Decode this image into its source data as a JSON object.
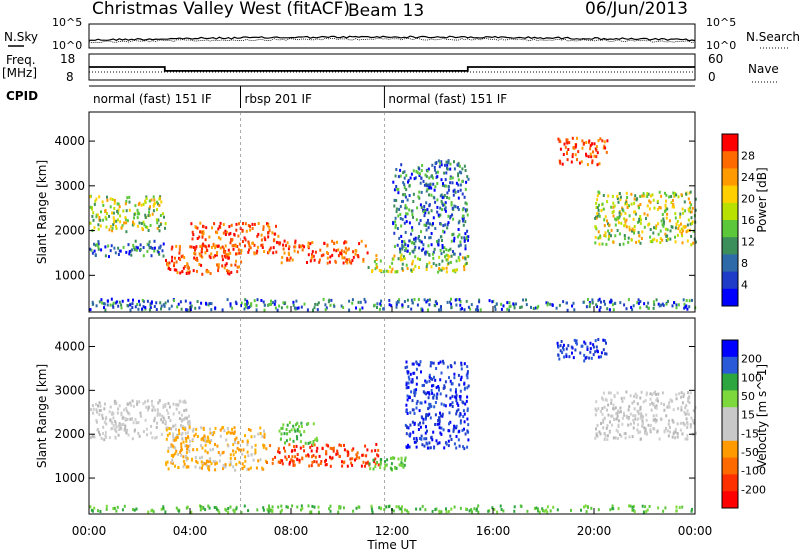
{
  "header": {
    "title": "Christmas Valley West (fitACF)",
    "beam": "Beam 13",
    "date": "06/Jun/2013"
  },
  "nsky": {
    "label": "N.Sky",
    "right_label": "N.Search",
    "ticks": [
      "10^5",
      "10^0"
    ],
    "right_ticks": [
      "10^5",
      "10^0"
    ]
  },
  "freq": {
    "label_line1": "Freq.",
    "label_line2": "[MHz]",
    "right_label": "Nave",
    "ticks": [
      "18",
      "8"
    ],
    "right_ticks": [
      "60",
      "0"
    ],
    "values_mhz": [
      {
        "start_hour": 0,
        "end_hour": 3,
        "value": 13.0
      },
      {
        "start_hour": 3,
        "end_hour": 15,
        "value": 11.5
      },
      {
        "start_hour": 15,
        "end_hour": 24,
        "value": 13.0
      }
    ]
  },
  "cpid": {
    "label": "CPID",
    "segments": [
      {
        "start_hour": 0,
        "end_hour": 6,
        "label": "normal (fast) 151 IF"
      },
      {
        "start_hour": 6,
        "end_hour": 11.7,
        "label": "rbsp 201 IF"
      },
      {
        "start_hour": 11.7,
        "end_hour": 24,
        "label": "normal (fast) 151 IF"
      }
    ]
  },
  "chart_data": [
    {
      "type": "heatmap",
      "name": "power-panel",
      "xlabel": "",
      "ylabel": "Slant Range [km]",
      "xlim": [
        0,
        24
      ],
      "ylim": [
        180,
        4650
      ],
      "yticks": [
        "1000",
        "2000",
        "3000",
        "4000"
      ],
      "colorbar": {
        "label": "Power [dB]",
        "ticks": [
          "28",
          "24",
          "20",
          "16",
          "12",
          "8",
          "4"
        ],
        "colors": [
          "#ff0000",
          "#ff6a00",
          "#ff9a00",
          "#ffd000",
          "#b8e000",
          "#5cc73a",
          "#3c8e5a",
          "#2f6aa8",
          "#1f3cc8",
          "#0000ff"
        ]
      },
      "regions": [
        {
          "x": [
            0,
            3
          ],
          "y": [
            2000,
            2800
          ],
          "level": "mid"
        },
        {
          "x": [
            0,
            3
          ],
          "y": [
            1450,
            1800
          ],
          "level": "low"
        },
        {
          "x": [
            3,
            6
          ],
          "y": [
            1050,
            1700
          ],
          "level": "high"
        },
        {
          "x": [
            4,
            7.5
          ],
          "y": [
            1500,
            2200
          ],
          "level": "high"
        },
        {
          "x": [
            7.5,
            11
          ],
          "y": [
            1300,
            1800
          ],
          "level": "high"
        },
        {
          "x": [
            11,
            15
          ],
          "y": [
            1100,
            1500
          ],
          "level": "mid"
        },
        {
          "x": [
            12,
            15
          ],
          "y": [
            1500,
            3600
          ],
          "level": "low"
        },
        {
          "x": [
            18.5,
            20.5
          ],
          "y": [
            3500,
            4100
          ],
          "level": "high"
        },
        {
          "x": [
            20,
            24
          ],
          "y": [
            1700,
            2900
          ],
          "level": "mid"
        },
        {
          "x": [
            0,
            24
          ],
          "y": [
            250,
            500
          ],
          "level": "low"
        }
      ]
    },
    {
      "type": "heatmap",
      "name": "velocity-panel",
      "xlabel": "Time UT",
      "ylabel": "Slant Range [km]",
      "xlim": [
        0,
        24
      ],
      "ylim": [
        180,
        4650
      ],
      "xticks": [
        "00:00",
        "04:00",
        "08:00",
        "12:00",
        "16:00",
        "20:00",
        "00:00"
      ],
      "yticks": [
        "1000",
        "2000",
        "3000",
        "4000"
      ],
      "colorbar": {
        "label": "Velocity [m s^-1]",
        "ticks": [
          "200",
          "100",
          "50",
          "15",
          "-15",
          "-50",
          "-100",
          "-200"
        ],
        "colors": [
          "#0000ff",
          "#2a5ad8",
          "#2ea640",
          "#7cd83c",
          "#c8c8c8",
          "#c8c8c8",
          "#ff9a00",
          "#ff6a00",
          "#ff3000",
          "#ff0000"
        ]
      },
      "regions": [
        {
          "x": [
            0,
            4
          ],
          "y": [
            1900,
            2800
          ],
          "level": "gray"
        },
        {
          "x": [
            3,
            7
          ],
          "y": [
            1200,
            2200
          ],
          "level": "orange"
        },
        {
          "x": [
            7,
            11.5
          ],
          "y": [
            1300,
            1800
          ],
          "level": "red"
        },
        {
          "x": [
            7.5,
            9
          ],
          "y": [
            1800,
            2300
          ],
          "level": "green"
        },
        {
          "x": [
            11,
            12.5
          ],
          "y": [
            1200,
            1500
          ],
          "level": "green"
        },
        {
          "x": [
            12.5,
            15
          ],
          "y": [
            1700,
            3700
          ],
          "level": "blue"
        },
        {
          "x": [
            18.5,
            20.5
          ],
          "y": [
            3700,
            4200
          ],
          "level": "blue"
        },
        {
          "x": [
            20,
            24
          ],
          "y": [
            1900,
            3000
          ],
          "level": "gray"
        },
        {
          "x": [
            0,
            24
          ],
          "y": [
            250,
            400
          ],
          "level": "green"
        }
      ]
    }
  ]
}
